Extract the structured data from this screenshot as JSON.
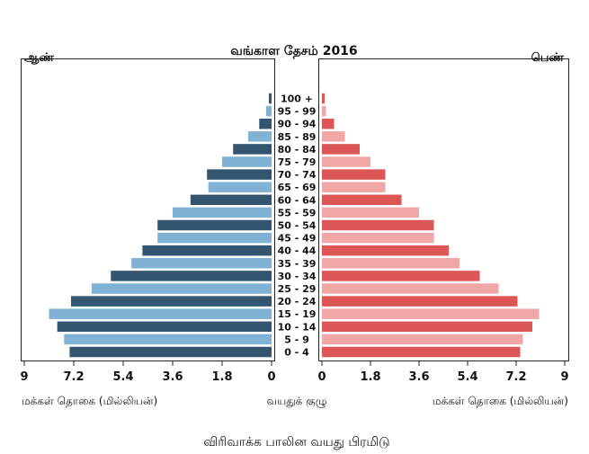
{
  "chart_data": {
    "type": "bar",
    "title": "வங்காள தேசம் 2016",
    "left_label": "ஆண்",
    "right_label": "பெண்",
    "xlabel_left": "மக்கள் தொகை (மில்லியன்)",
    "xlabel_right": "மக்கள் தொகை (மில்லியன்)",
    "center_axis_label": "வயதுக் குழு",
    "caption": "விரிவாக்க பாலின வயது பிரமிடு",
    "xlim": [
      0,
      9
    ],
    "ticks": [
      "9",
      "7.2",
      "5.4",
      "3.6",
      "1.8",
      "0"
    ],
    "ticks_right": [
      "0",
      "1.8",
      "3.6",
      "5.4",
      "7.2",
      "9"
    ],
    "categories": [
      "100 +",
      "95 - 99",
      "90 - 94",
      "85 - 89",
      "80 - 84",
      "75 - 79",
      "70 - 74",
      "65 - 69",
      "60 - 64",
      "55 - 59",
      "50 - 54",
      "45 - 49",
      "40 - 44",
      "35 - 39",
      "30 - 34",
      "25 - 29",
      "20 - 24",
      "15 - 19",
      "10 - 14",
      "5 - 9",
      "0 - 4"
    ],
    "series": [
      {
        "name": "ஆண்",
        "values": [
          0.1,
          0.2,
          0.45,
          0.85,
          1.4,
          1.8,
          2.35,
          2.3,
          2.95,
          3.6,
          4.15,
          4.15,
          4.7,
          5.1,
          5.85,
          6.55,
          7.3,
          8.1,
          7.8,
          7.55,
          7.35
        ]
      },
      {
        "name": "பெண்",
        "values": [
          0.1,
          0.15,
          0.45,
          0.85,
          1.4,
          1.8,
          2.35,
          2.35,
          2.95,
          3.6,
          4.15,
          4.15,
          4.7,
          5.1,
          5.85,
          6.55,
          7.25,
          8.05,
          7.8,
          7.45,
          7.35
        ]
      }
    ],
    "colors": {
      "male_dark": "#33556f",
      "male_light": "#7fb2d4",
      "female_dark": "#dd5656",
      "female_light": "#f1a7a7",
      "axis": "#222222"
    }
  }
}
